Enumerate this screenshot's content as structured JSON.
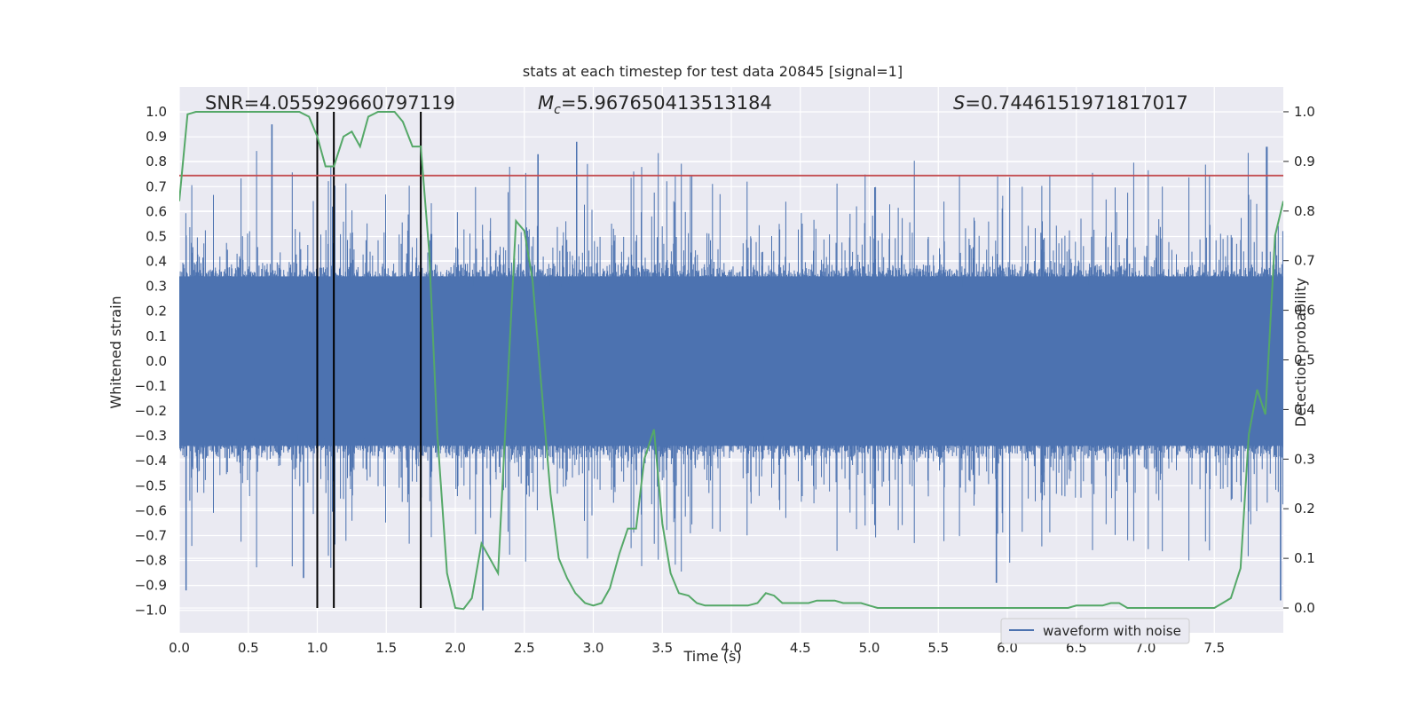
{
  "chart_data": {
    "type": "line",
    "title": "stats at each timestep for test data 20845 [signal=1]",
    "xlabel": "Time (s)",
    "ylabel": "Whitened strain",
    "y2label": "Detection probability",
    "xlim": [
      0.0,
      8.0
    ],
    "ylim": [
      -1.09,
      1.1
    ],
    "y2lim": [
      -0.05,
      1.05
    ],
    "xticks": [
      0.0,
      0.5,
      1.0,
      1.5,
      2.0,
      2.5,
      3.0,
      3.5,
      4.0,
      4.5,
      5.0,
      5.5,
      6.0,
      6.5,
      7.0,
      7.5
    ],
    "yticks": [
      -1.0,
      -0.9,
      -0.8,
      -0.7,
      -0.6,
      -0.5,
      -0.4,
      -0.3,
      -0.2,
      -0.1,
      0.0,
      0.1,
      0.2,
      0.3,
      0.4,
      0.5,
      0.6,
      0.7,
      0.8,
      0.9,
      1.0
    ],
    "y2ticks": [
      0.0,
      0.1,
      0.2,
      0.3,
      0.4,
      0.5,
      0.6,
      0.7,
      0.8,
      0.9,
      1.0
    ],
    "xtick_labels": [
      "0.0",
      "0.5",
      "1.0",
      "1.5",
      "2.0",
      "2.5",
      "3.0",
      "3.5",
      "4.0",
      "4.5",
      "5.0",
      "5.5",
      "6.0",
      "6.5",
      "7.0",
      "7.5"
    ],
    "ytick_labels": [
      "−1.0",
      "−0.9",
      "−0.8",
      "−0.7",
      "−0.6",
      "−0.5",
      "−0.4",
      "−0.3",
      "−0.2",
      "−0.1",
      "0.0",
      "0.1",
      "0.2",
      "0.3",
      "0.4",
      "0.5",
      "0.6",
      "0.7",
      "0.8",
      "0.9",
      "1.0"
    ],
    "y2tick_labels": [
      "0.0",
      "0.1",
      "0.2",
      "0.3",
      "0.4",
      "0.5",
      "0.6",
      "0.7",
      "0.8",
      "0.9",
      "1.0"
    ],
    "annotations": {
      "snr": "SNR=4.055929660797119",
      "mc_symbol": "M",
      "mc_sub": "c",
      "mc_value": "=5.967650413513184",
      "s_symbol": "S",
      "s_value": "=0.7446151971817017"
    },
    "threshold": 0.7446151971817017,
    "vlines_x": [
      1.0,
      1.12,
      1.75
    ],
    "series": [
      {
        "name": "waveform with noise",
        "axis": "left",
        "style": "dense-noise",
        "note": "whitened strain, ~8000 samples, core amplitude about ±0.35 with spikes reaching about ±1.0",
        "peaks": [
          {
            "x": 0.67,
            "y": 0.95
          },
          {
            "x": 0.9,
            "y": -0.87
          },
          {
            "x": 0.05,
            "y": -0.92
          },
          {
            "x": 2.2,
            "y": -1.0
          },
          {
            "x": 2.6,
            "y": 0.83
          },
          {
            "x": 2.88,
            "y": 0.88
          },
          {
            "x": 7.88,
            "y": 0.86
          },
          {
            "x": 7.98,
            "y": -0.96
          },
          {
            "x": 5.92,
            "y": -0.89
          }
        ]
      },
      {
        "name": "detection probability",
        "axis": "right",
        "color": "#55a868",
        "x": [
          0.0,
          0.06,
          0.12,
          0.19,
          0.25,
          0.31,
          0.37,
          0.44,
          0.5,
          0.56,
          0.62,
          0.69,
          0.75,
          0.81,
          0.87,
          0.94,
          1.0,
          1.06,
          1.12,
          1.19,
          1.25,
          1.31,
          1.37,
          1.44,
          1.5,
          1.56,
          1.62,
          1.69,
          1.75,
          1.81,
          1.87,
          1.94,
          2.0,
          2.06,
          2.12,
          2.19,
          2.25,
          2.31,
          2.37,
          2.44,
          2.5,
          2.56,
          2.62,
          2.69,
          2.75,
          2.81,
          2.87,
          2.94,
          3.0,
          3.06,
          3.12,
          3.19,
          3.25,
          3.31,
          3.37,
          3.44,
          3.5,
          3.56,
          3.62,
          3.69,
          3.75,
          3.81,
          3.87,
          3.94,
          4.0,
          4.06,
          4.12,
          4.19,
          4.25,
          4.31,
          4.37,
          4.44,
          4.5,
          4.56,
          4.62,
          4.69,
          4.75,
          4.81,
          4.87,
          4.94,
          5.0,
          5.06,
          5.12,
          5.19,
          5.25,
          5.31,
          5.37,
          5.44,
          5.5,
          5.56,
          5.62,
          5.69,
          5.75,
          5.81,
          5.87,
          5.94,
          6.0,
          6.06,
          6.12,
          6.19,
          6.25,
          6.31,
          6.37,
          6.44,
          6.5,
          6.56,
          6.62,
          6.69,
          6.75,
          6.81,
          6.87,
          6.94,
          7.0,
          7.06,
          7.12,
          7.19,
          7.25,
          7.31,
          7.37,
          7.44,
          7.5,
          7.56,
          7.62,
          7.69,
          7.75,
          7.81,
          7.87,
          7.94,
          8.0
        ],
        "y": [
          0.82,
          0.995,
          1.0,
          1.0,
          1.0,
          1.0,
          1.0,
          1.0,
          1.0,
          1.0,
          1.0,
          1.0,
          1.0,
          1.0,
          1.0,
          0.99,
          0.95,
          0.89,
          0.89,
          0.95,
          0.96,
          0.93,
          0.99,
          1.0,
          1.0,
          1.0,
          0.98,
          0.93,
          0.93,
          0.72,
          0.35,
          0.07,
          0.0,
          -0.002,
          0.02,
          0.13,
          0.1,
          0.07,
          0.4,
          0.78,
          0.76,
          0.66,
          0.46,
          0.23,
          0.1,
          0.06,
          0.03,
          0.01,
          0.005,
          0.01,
          0.04,
          0.11,
          0.16,
          0.16,
          0.3,
          0.36,
          0.17,
          0.07,
          0.03,
          0.025,
          0.01,
          0.005,
          0.005,
          0.005,
          0.005,
          0.005,
          0.005,
          0.01,
          0.03,
          0.025,
          0.01,
          0.01,
          0.01,
          0.01,
          0.015,
          0.015,
          0.015,
          0.01,
          0.01,
          0.01,
          0.005,
          0.0,
          0.0,
          0.0,
          0.0,
          0.0,
          0.0,
          0.0,
          0.0,
          0.0,
          0.0,
          0.0,
          0.0,
          0.0,
          0.0,
          0.0,
          0.0,
          0.0,
          0.0,
          0.0,
          0.0,
          0.0,
          0.0,
          0.0,
          0.005,
          0.005,
          0.005,
          0.005,
          0.01,
          0.01,
          0.0,
          0.0,
          0.0,
          0.0,
          0.0,
          0.0,
          0.0,
          0.0,
          0.0,
          0.0,
          0.0,
          0.01,
          0.02,
          0.08,
          0.35,
          0.44,
          0.39,
          0.75,
          0.82
        ]
      }
    ],
    "legend": {
      "label": "waveform with noise",
      "placement": "lower-right"
    },
    "grid": true,
    "colors": {
      "background": "#eaeaf2",
      "grid": "#ffffff",
      "waveform": "#4c72b0",
      "probability": "#55a868",
      "threshold": "#c44e52",
      "vline": "#000000",
      "text": "#262626"
    }
  }
}
